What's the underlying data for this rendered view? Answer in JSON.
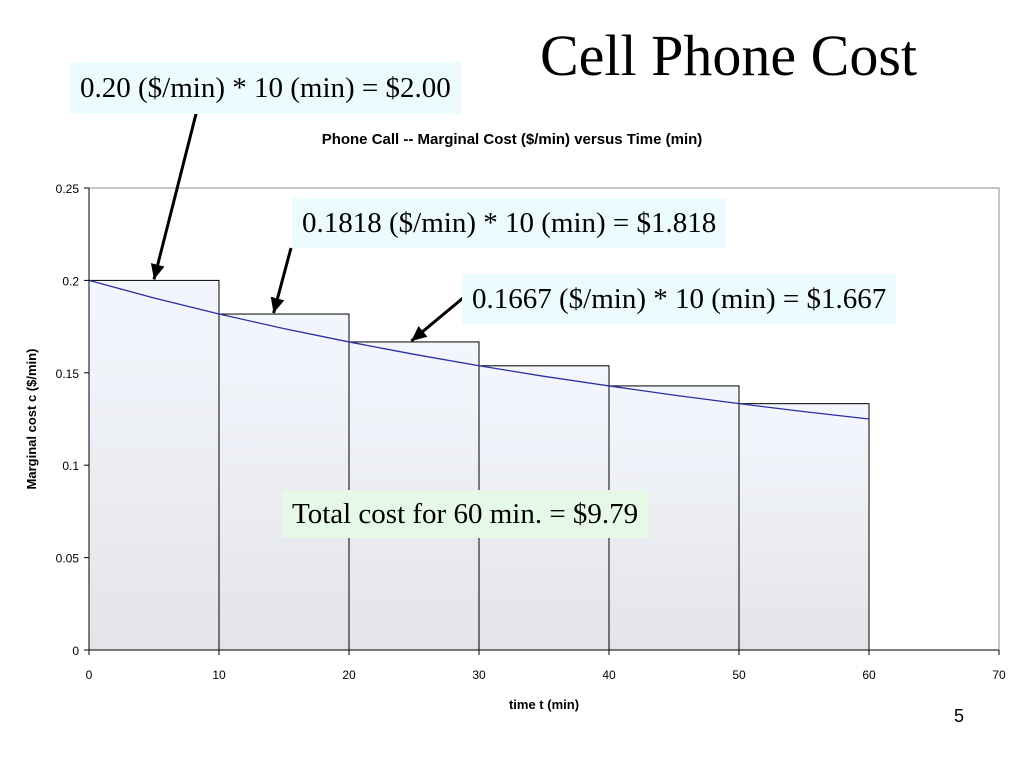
{
  "slide": {
    "title": "Cell Phone Cost",
    "page_number": "5",
    "callouts": [
      "0.20 ($/min) * 10 (min) = $2.00",
      "0.1818 ($/min) * 10 (min) = $1.818",
      "0.1667 ($/min) * 10 (min) = $1.667",
      "Total cost for 60 min. = $9.79"
    ]
  },
  "chart_data": {
    "type": "bar",
    "title": "Phone Call -- Marginal Cost ($/min) versus Time (min)",
    "xlabel": "time t (min)",
    "ylabel": "Marginal cost c ($/min)",
    "xlim": [
      0,
      70
    ],
    "ylim": [
      0,
      0.25
    ],
    "x_ticks": [
      "0",
      "10",
      "20",
      "30",
      "40",
      "50",
      "60",
      "70"
    ],
    "y_ticks": [
      "0",
      "0.05",
      "0.1",
      "0.15",
      "0.2",
      "0.25"
    ],
    "bars": [
      {
        "x_start": 0,
        "x_end": 10,
        "value": 0.2
      },
      {
        "x_start": 10,
        "x_end": 20,
        "value": 0.1818
      },
      {
        "x_start": 20,
        "x_end": 30,
        "value": 0.1667
      },
      {
        "x_start": 30,
        "x_end": 40,
        "value": 0.1538
      },
      {
        "x_start": 40,
        "x_end": 50,
        "value": 0.1429
      },
      {
        "x_start": 50,
        "x_end": 60,
        "value": 0.1333
      }
    ],
    "curve": {
      "x": [
        0,
        5,
        10,
        15,
        20,
        25,
        30,
        35,
        40,
        45,
        50,
        55,
        60
      ],
      "y": [
        0.2,
        0.1905,
        0.1818,
        0.1739,
        0.1667,
        0.16,
        0.1538,
        0.1481,
        0.1429,
        0.1379,
        0.1333,
        0.129,
        0.125
      ]
    },
    "grid": false,
    "legend": "none",
    "colors": {
      "curve": "#2b2fa0",
      "bar_edge": "#000000",
      "bar_fill_top": "#f3f7fd",
      "bar_fill_bottom": "#e4e4ea",
      "arrow": "#000000"
    }
  }
}
